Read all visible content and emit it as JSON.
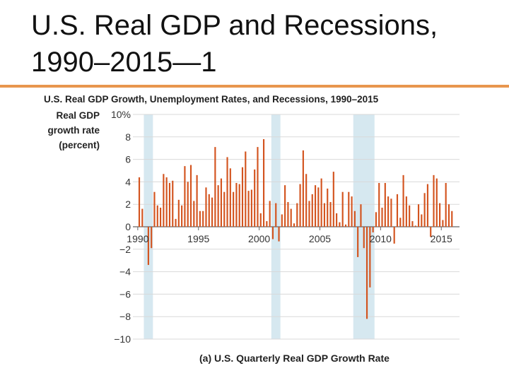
{
  "slide": {
    "title_line1": "U.S. Real GDP and Recessions,",
    "title_line2": "1990–2015—1",
    "rule_color": "#e8964e"
  },
  "chart_data": {
    "type": "bar",
    "title": "U.S. Real GDP Growth, Unemployment Rates, and Recessions, 1990–2015",
    "ylabel_lines": [
      "Real GDP",
      "growth rate",
      "(percent)"
    ],
    "caption": "(a) U.S. Quarterly Real GDP Growth Rate",
    "ylim": [
      -10,
      10
    ],
    "y_ticks": [
      {
        "value": 10,
        "label": "10%"
      },
      {
        "value": 8,
        "label": "8"
      },
      {
        "value": 6,
        "label": "6"
      },
      {
        "value": 4,
        "label": "4"
      },
      {
        "value": 2,
        "label": "2"
      },
      {
        "value": 0,
        "label": "0"
      },
      {
        "value": -2,
        "label": "−2"
      },
      {
        "value": -4,
        "label": "−4"
      },
      {
        "value": -6,
        "label": "−6"
      },
      {
        "value": -8,
        "label": "−8"
      },
      {
        "value": -10,
        "label": "−10"
      }
    ],
    "x_ticks": [
      {
        "year": 1990,
        "label": "1990"
      },
      {
        "year": 1995,
        "label": "1995"
      },
      {
        "year": 2000,
        "label": "2000"
      },
      {
        "year": 2005,
        "label": "2005"
      },
      {
        "year": 2010,
        "label": "2010"
      },
      {
        "year": 2015,
        "label": "2015"
      }
    ],
    "x_range": [
      1989.6,
      2016.5
    ],
    "grid": true,
    "bar_color": "#d3541f",
    "recession_color": "#d6e8f0",
    "recessions": [
      [
        1990.5,
        1991.25
      ],
      [
        2001.0,
        2001.75
      ],
      [
        2007.75,
        2009.5
      ]
    ],
    "start_year": 1990,
    "values": [
      4.4,
      1.6,
      0.0,
      -3.4,
      -1.9,
      3.1,
      1.9,
      1.7,
      4.7,
      4.4,
      3.9,
      4.1,
      0.7,
      2.4,
      1.9,
      5.4,
      4.0,
      5.5,
      2.3,
      4.6,
      1.4,
      1.4,
      3.5,
      2.9,
      2.6,
      7.1,
      3.7,
      4.3,
      3.1,
      6.2,
      5.2,
      3.1,
      3.9,
      3.8,
      5.3,
      6.7,
      3.2,
      3.3,
      5.1,
      7.1,
      1.2,
      7.8,
      0.5,
      2.3,
      -1.1,
      2.1,
      -1.3,
      1.1,
      3.7,
      2.2,
      1.6,
      0.3,
      2.1,
      3.8,
      6.8,
      4.7,
      2.3,
      2.9,
      3.7,
      3.5,
      4.3,
      2.1,
      3.4,
      2.2,
      4.9,
      1.2,
      0.4,
      3.1,
      0.2,
      3.1,
      2.7,
      1.4,
      -2.7,
      2.0,
      -1.9,
      -8.2,
      -5.4,
      -0.5,
      1.3,
      3.9,
      1.7,
      3.9,
      2.7,
      2.5,
      -1.5,
      2.9,
      0.8,
      4.6,
      2.7,
      1.9,
      0.5,
      0.1,
      2.0,
      1.1,
      3.0,
      3.8,
      -0.9,
      4.6,
      4.3,
      2.1,
      0.6,
      3.9,
      2.0,
      1.4
    ]
  }
}
